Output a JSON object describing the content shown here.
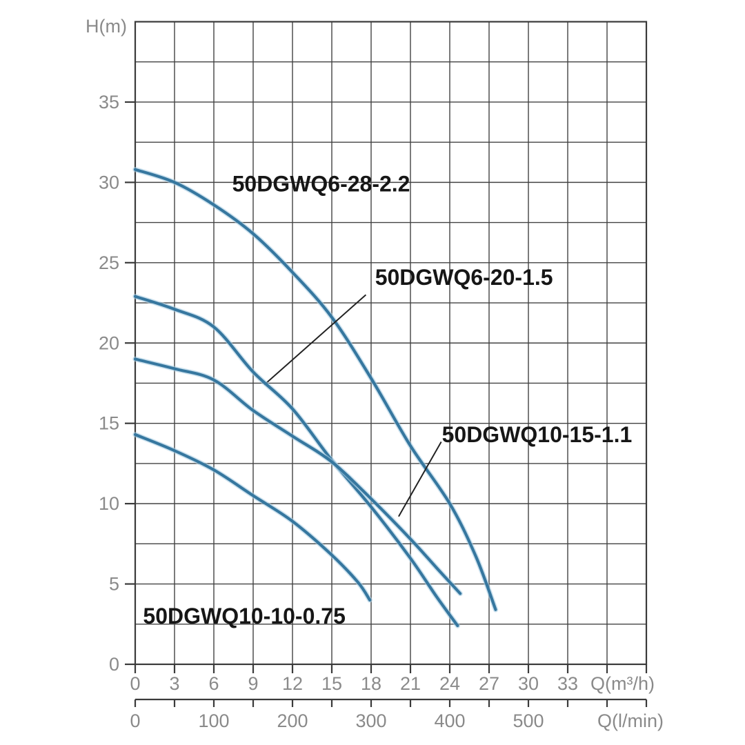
{
  "colors": {
    "background": "#ffffff",
    "grid": "#424242",
    "border": "#3a3a3a",
    "tick_label": "#8a8a8a",
    "axis_unit_label": "#8a8a8a",
    "curve": "#36779f",
    "curve_halo": "#a9cde3",
    "curve_label": "#161616",
    "leader_line": "#222222"
  },
  "axes": {
    "y_label": "H(m)",
    "x_label": "Q(m³/h)",
    "x2_label": "Q(l/min)"
  },
  "chart_data": {
    "type": "line",
    "title": "",
    "ylabel": "H(m)",
    "xlabel": "Q(m³/h)",
    "x2label": "Q(l/min)",
    "xlim": [
      0,
      39
    ],
    "ylim": [
      0,
      40
    ],
    "grid": true,
    "x_grid_step": 3,
    "y_grid_step": 2.5,
    "x_ticks": [
      0,
      3,
      6,
      9,
      12,
      15,
      18,
      21,
      24,
      27,
      30,
      33
    ],
    "y_ticks": [
      0,
      5,
      10,
      15,
      20,
      25,
      30,
      35
    ],
    "x2_ticks": [
      0,
      100,
      200,
      300,
      400,
      500
    ],
    "x2_minor_step_lmin": 50,
    "lmin_per_m3h": 16.6667,
    "legend_position": "inline-labels",
    "series": [
      {
        "name": "50DGWQ6-28-2.2",
        "points": [
          [
            0,
            30.8
          ],
          [
            3,
            30.0
          ],
          [
            6,
            28.6
          ],
          [
            9,
            26.8
          ],
          [
            12,
            24.4
          ],
          [
            15,
            21.6
          ],
          [
            18,
            17.8
          ],
          [
            21,
            13.6
          ],
          [
            24,
            10.0
          ],
          [
            26,
            6.7
          ],
          [
            27.5,
            3.4
          ]
        ],
        "label_at": [
          7.4,
          29.9
        ],
        "leader": null
      },
      {
        "name": "50DGWQ6-20-1.5",
        "points": [
          [
            0,
            22.9
          ],
          [
            3,
            22.1
          ],
          [
            6,
            21.0
          ],
          [
            9,
            18.2
          ],
          [
            12,
            15.9
          ],
          [
            15,
            12.7
          ],
          [
            18,
            9.8
          ],
          [
            21,
            6.6
          ],
          [
            23,
            4.2
          ],
          [
            24.6,
            2.4
          ]
        ],
        "label_at": [
          18.3,
          24.1
        ],
        "leader": [
          [
            9.85,
            17.4
          ],
          [
            17.6,
            23.0
          ]
        ]
      },
      {
        "name": "50DGWQ10-15-1.1",
        "points": [
          [
            0,
            19.0
          ],
          [
            3,
            18.4
          ],
          [
            6,
            17.7
          ],
          [
            9,
            15.8
          ],
          [
            12,
            14.2
          ],
          [
            15,
            12.6
          ],
          [
            18,
            10.3
          ],
          [
            21,
            7.8
          ],
          [
            23,
            6.0
          ],
          [
            24.8,
            4.4
          ]
        ],
        "label_at": [
          23.4,
          14.3
        ],
        "leader": [
          [
            20.1,
            9.2
          ],
          [
            23.35,
            13.85
          ]
        ]
      },
      {
        "name": "50DGWQ10-10-0.75",
        "points": [
          [
            0,
            14.3
          ],
          [
            3,
            13.3
          ],
          [
            6,
            12.1
          ],
          [
            9,
            10.5
          ],
          [
            12,
            8.9
          ],
          [
            15,
            6.8
          ],
          [
            17,
            5.1
          ],
          [
            17.9,
            4.0
          ]
        ],
        "label_at": [
          0.6,
          3.0
        ],
        "leader": null
      }
    ]
  }
}
